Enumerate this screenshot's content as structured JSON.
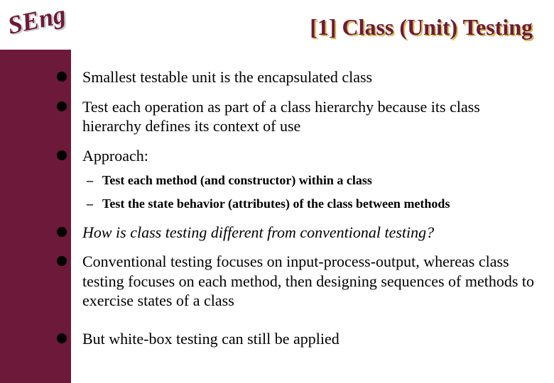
{
  "colors": {
    "sidebar": "#6d1a3a",
    "title": "#6d1a3a",
    "title_shadow": "#d9b84a",
    "logo_text": "#6d1a3a",
    "logo_shadow": "#c9c9c9",
    "bullet": "#000000",
    "text": "#000000",
    "background": "#ffffff"
  },
  "fonts": {
    "title_size": 32,
    "bullet_size": 22,
    "sub_size": 18,
    "family": "Times New Roman"
  },
  "logo": {
    "text": "SEng"
  },
  "title": "[1] Class (Unit) Testing",
  "bullets": [
    {
      "text": "Smallest testable unit is the encapsulated class",
      "italic": false
    },
    {
      "text": "Test each operation as part of a class hierarchy because its class hierarchy defines its context of use",
      "italic": false
    },
    {
      "text": "Approach:",
      "italic": false,
      "sub": [
        "Test each method (and constructor) within a class",
        "Test the state behavior (attributes) of the class between methods"
      ]
    },
    {
      "text": "How is class testing different from conventional testing?",
      "italic": true
    },
    {
      "text": "Conventional testing focuses on input-process-output, whereas class testing focuses on each method, then designing sequences of methods to exercise states of a class",
      "italic": false,
      "gap_after": true
    },
    {
      "text": "But white-box testing can still be applied",
      "italic": false
    }
  ]
}
